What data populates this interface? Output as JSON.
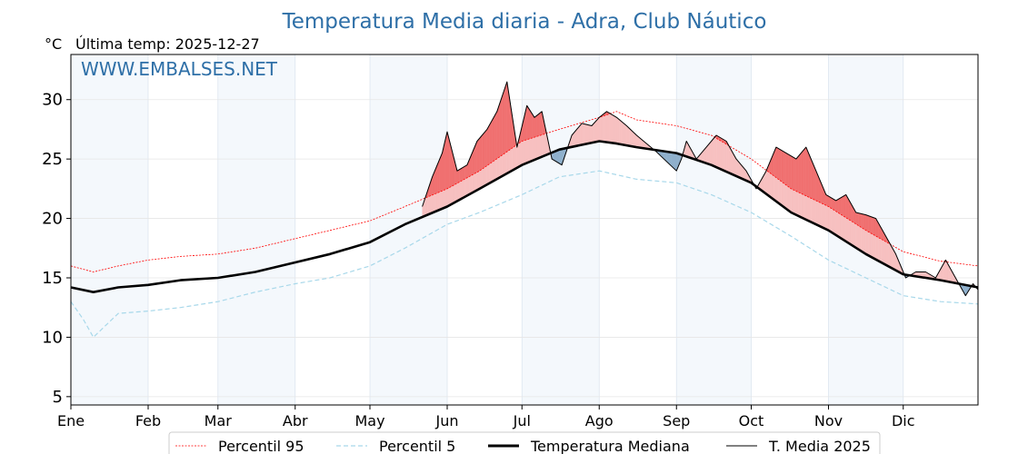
{
  "chart_data": {
    "type": "line",
    "title": "Temperatura Media diaria - Adra, Club Náutico",
    "ylabel": "°C",
    "subtitle": "Última temp: 2025-12-27",
    "watermark": "WWW.EMBALSES.NET",
    "ylim": [
      4.3,
      33.8
    ],
    "xlim": [
      1,
      365
    ],
    "yticks": [
      5,
      10,
      15,
      20,
      25,
      30
    ],
    "months": [
      {
        "label": "Ene",
        "day": 1
      },
      {
        "label": "Feb",
        "day": 32
      },
      {
        "label": "Mar",
        "day": 60
      },
      {
        "label": "Abr",
        "day": 91
      },
      {
        "label": "May",
        "day": 121
      },
      {
        "label": "Jun",
        "day": 152
      },
      {
        "label": "Jul",
        "day": 182
      },
      {
        "label": "Ago",
        "day": 213
      },
      {
        "label": "Sep",
        "day": 244
      },
      {
        "label": "Oct",
        "day": 274
      },
      {
        "label": "Nov",
        "day": 305
      },
      {
        "label": "Dic",
        "day": 335
      }
    ],
    "series": [
      {
        "name": "Percentil 95",
        "style": "dotted",
        "color": "#ff0000",
        "x": [
          1,
          10,
          20,
          32,
          45,
          60,
          75,
          91,
          105,
          121,
          135,
          152,
          165,
          182,
          197,
          213,
          220,
          228,
          244,
          258,
          274,
          290,
          305,
          320,
          335,
          350,
          365
        ],
        "values": [
          16.0,
          15.5,
          16.0,
          16.5,
          16.8,
          17.0,
          17.5,
          18.3,
          19.0,
          19.8,
          21.0,
          22.5,
          24.0,
          26.5,
          27.5,
          28.5,
          29.0,
          28.3,
          27.8,
          27.0,
          25.0,
          22.5,
          21.0,
          19.0,
          17.2,
          16.4,
          16.0
        ]
      },
      {
        "name": "Percentil 5",
        "style": "dashed",
        "color": "#a8d8ea",
        "x": [
          1,
          6,
          10,
          20,
          32,
          45,
          60,
          75,
          91,
          105,
          121,
          135,
          152,
          165,
          182,
          197,
          213,
          228,
          244,
          258,
          274,
          290,
          305,
          320,
          335,
          350,
          365
        ],
        "values": [
          13.0,
          11.5,
          10.0,
          12.0,
          12.2,
          12.5,
          13.0,
          13.8,
          14.5,
          15.0,
          16.0,
          17.5,
          19.5,
          20.5,
          22.0,
          23.5,
          24.0,
          23.3,
          23.0,
          22.0,
          20.5,
          18.5,
          16.5,
          15.0,
          13.5,
          13.0,
          12.8
        ]
      },
      {
        "name": "Temperatura Mediana",
        "style": "solid-thick",
        "color": "#000000",
        "x": [
          1,
          10,
          20,
          32,
          45,
          60,
          75,
          91,
          105,
          121,
          135,
          152,
          165,
          182,
          197,
          213,
          220,
          228,
          244,
          258,
          274,
          290,
          305,
          320,
          335,
          350,
          365
        ],
        "values": [
          14.2,
          13.8,
          14.2,
          14.4,
          14.8,
          15.0,
          15.5,
          16.3,
          17.0,
          18.0,
          19.5,
          21.0,
          22.5,
          24.5,
          25.8,
          26.5,
          26.3,
          26.0,
          25.5,
          24.5,
          23.0,
          20.5,
          19.0,
          17.0,
          15.3,
          14.8,
          14.2
        ]
      },
      {
        "name": "T. Media 2025",
        "style": "solid-thin",
        "color": "#000000",
        "x": [
          142,
          146,
          150,
          152,
          156,
          160,
          164,
          168,
          172,
          176,
          180,
          184,
          187,
          190,
          194,
          198,
          202,
          206,
          210,
          213,
          216,
          220,
          224,
          228,
          232,
          236,
          240,
          244,
          246,
          248,
          252,
          256,
          260,
          264,
          268,
          272,
          276,
          280,
          284,
          288,
          292,
          296,
          300,
          304,
          308,
          312,
          316,
          320,
          324,
          328,
          332,
          336,
          340,
          344,
          348,
          352,
          356,
          360,
          363,
          365
        ],
        "values": [
          21.0,
          23.5,
          25.5,
          27.3,
          24.0,
          24.5,
          26.5,
          27.5,
          29.0,
          31.5,
          26.0,
          29.5,
          28.5,
          29.0,
          25.0,
          24.5,
          27.0,
          28.0,
          27.8,
          28.5,
          29.0,
          28.5,
          27.8,
          27.0,
          26.3,
          25.6,
          24.8,
          24.0,
          25.0,
          26.5,
          25.0,
          26.0,
          27.0,
          26.5,
          25.0,
          24.0,
          22.5,
          24.0,
          26.0,
          25.5,
          25.0,
          26.0,
          24.0,
          22.0,
          21.5,
          22.0,
          20.5,
          20.3,
          20.0,
          18.5,
          17.0,
          15.0,
          15.5,
          15.5,
          15.0,
          16.5,
          15.0,
          13.5,
          14.5,
          14.0
        ]
      }
    ],
    "legend": [
      "Percentil 95",
      "Percentil 5",
      "Temperatura Mediana",
      "T. Media 2025"
    ],
    "legend_position": "bottom-center",
    "fill_colors": {
      "above_p95": "#f07070",
      "above_median": "#f7c0c0",
      "below_median": "#8fb0cc",
      "below_p5": "#3a6ea5"
    },
    "grid": true
  }
}
